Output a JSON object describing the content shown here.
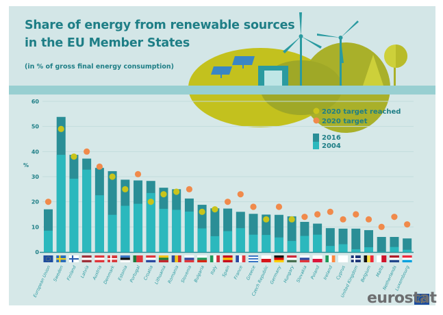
{
  "header": {
    "title_line1": "Share of energy from renewable sources",
    "title_line2": "in the EU Member States",
    "subtitle": "(in % of gross final energy consumption)"
  },
  "logo": {
    "text": "eurostat"
  },
  "colors": {
    "bar_2016": "#2a8e96",
    "bar_2004": "#2bb8bd",
    "target_reached": "#c9c41b",
    "target": "#f08a4b",
    "text": "#1e7e86"
  },
  "chart_data": {
    "type": "bar",
    "title": "Share of energy from renewable sources in the EU Member States",
    "subtitle": "(in % of gross final energy consumption)",
    "ylabel": "%",
    "ylim": [
      0,
      60
    ],
    "yticks": [
      0,
      10,
      20,
      30,
      40,
      50,
      60
    ],
    "grid": true,
    "legend_placement": "top-right",
    "legend": {
      "reached": "2020 target reached",
      "target": "2020 target",
      "y2016": "2016",
      "y2004": "2004"
    },
    "categories": [
      "European Union",
      "Sweden",
      "Finland",
      "Latvia",
      "Austria",
      "Denmark",
      "Estonia",
      "Portugal",
      "Croatia",
      "Lithuania",
      "Romania",
      "Slovenia",
      "Bulgaria",
      "Italy",
      "Spain",
      "France",
      "Greece",
      "Czech Republic",
      "Germany",
      "Hungary",
      "Slovakia",
      "Poland",
      "Ireland",
      "Cyprus",
      "United Kingdom",
      "Belgium",
      "Malta",
      "Netherlands",
      "Luxembourg"
    ],
    "series": [
      {
        "name": "2016",
        "values": [
          17.0,
          53.8,
          38.7,
          37.2,
          33.5,
          32.2,
          28.8,
          28.5,
          28.3,
          25.6,
          25.0,
          21.3,
          18.8,
          17.4,
          17.3,
          16.0,
          15.2,
          14.9,
          14.8,
          14.2,
          12.0,
          11.3,
          9.5,
          9.3,
          9.3,
          8.7,
          6.0,
          6.0,
          5.4
        ]
      },
      {
        "name": "2004",
        "values": [
          8.5,
          38.7,
          29.2,
          32.8,
          22.6,
          14.8,
          18.4,
          19.2,
          23.5,
          17.2,
          16.8,
          16.1,
          9.4,
          6.3,
          8.3,
          9.5,
          6.9,
          6.8,
          5.8,
          4.4,
          6.4,
          6.9,
          2.4,
          3.1,
          1.1,
          1.9,
          0.1,
          2.0,
          0.9
        ]
      }
    ],
    "target_2020": [
      20,
      49,
      38,
      40,
      34,
      30,
      25,
      31,
      20,
      23,
      24,
      25,
      16,
      17,
      20,
      23,
      18,
      13,
      18,
      13,
      14,
      15,
      16,
      13,
      15,
      13,
      10,
      14,
      11
    ],
    "target_reached": [
      false,
      true,
      true,
      false,
      false,
      true,
      true,
      false,
      true,
      true,
      true,
      false,
      true,
      true,
      false,
      false,
      false,
      true,
      false,
      true,
      false,
      false,
      false,
      false,
      false,
      false,
      false,
      false,
      false
    ]
  },
  "flags": [
    {
      "t": "eu",
      "c": [
        "#1d4c9e",
        "#f2d21a"
      ]
    },
    {
      "t": "cross",
      "c": [
        "#2a6ebb",
        "#f6d31a"
      ]
    },
    {
      "t": "cross",
      "c": [
        "#ffffff",
        "#2a5db0"
      ]
    },
    {
      "t": "h",
      "c": [
        "#9e3039",
        "#ffffff",
        "#9e3039"
      ]
    },
    {
      "t": "h",
      "c": [
        "#e0353b",
        "#ffffff",
        "#e0353b"
      ]
    },
    {
      "t": "cross",
      "c": [
        "#d7393b",
        "#ffffff"
      ]
    },
    {
      "t": "h",
      "c": [
        "#3a75c4",
        "#111111",
        "#ffffff"
      ]
    },
    {
      "t": "v",
      "c": [
        "#1c7a3a",
        "#e0353b",
        "#e0353b"
      ]
    },
    {
      "t": "h",
      "c": [
        "#e0353b",
        "#ffffff",
        "#2b4aa0"
      ]
    },
    {
      "t": "h",
      "c": [
        "#f2c318",
        "#1d7d3a",
        "#c1272d"
      ]
    },
    {
      "t": "v",
      "c": [
        "#2b4aa0",
        "#f2c318",
        "#ce2b37"
      ]
    },
    {
      "t": "h",
      "c": [
        "#ffffff",
        "#2b4aa0",
        "#e0353b"
      ]
    },
    {
      "t": "h",
      "c": [
        "#ffffff",
        "#1d9a5b",
        "#d62612"
      ]
    },
    {
      "t": "v",
      "c": [
        "#1d9a5b",
        "#ffffff",
        "#ce2b37"
      ]
    },
    {
      "t": "h",
      "c": [
        "#c60b1e",
        "#ffc400",
        "#c60b1e"
      ]
    },
    {
      "t": "v",
      "c": [
        "#2b4aa0",
        "#ffffff",
        "#e0353b"
      ]
    },
    {
      "t": "h",
      "c": [
        "#3a75c4",
        "#ffffff",
        "#3a75c4",
        "#ffffff",
        "#3a75c4"
      ]
    },
    {
      "t": "h",
      "c": [
        "#ffffff",
        "#d7141a"
      ]
    },
    {
      "t": "h",
      "c": [
        "#111111",
        "#dd0000",
        "#ffce00"
      ]
    },
    {
      "t": "h",
      "c": [
        "#ce2939",
        "#ffffff",
        "#477050"
      ]
    },
    {
      "t": "h",
      "c": [
        "#ffffff",
        "#2b4aa0",
        "#e0353b"
      ]
    },
    {
      "t": "h",
      "c": [
        "#ffffff",
        "#dc143c"
      ]
    },
    {
      "t": "v",
      "c": [
        "#1d9a5b",
        "#ffffff",
        "#ff883e"
      ]
    },
    {
      "t": "h",
      "c": [
        "#ffffff"
      ]
    },
    {
      "t": "cross",
      "c": [
        "#1c3578",
        "#ffffff"
      ]
    },
    {
      "t": "v",
      "c": [
        "#111111",
        "#fae042",
        "#ed2939"
      ]
    },
    {
      "t": "v",
      "c": [
        "#ffffff",
        "#cf142b"
      ]
    },
    {
      "t": "h",
      "c": [
        "#ae1c28",
        "#ffffff",
        "#21468b"
      ]
    },
    {
      "t": "h",
      "c": [
        "#ed2939",
        "#ffffff",
        "#00a1de"
      ]
    }
  ]
}
